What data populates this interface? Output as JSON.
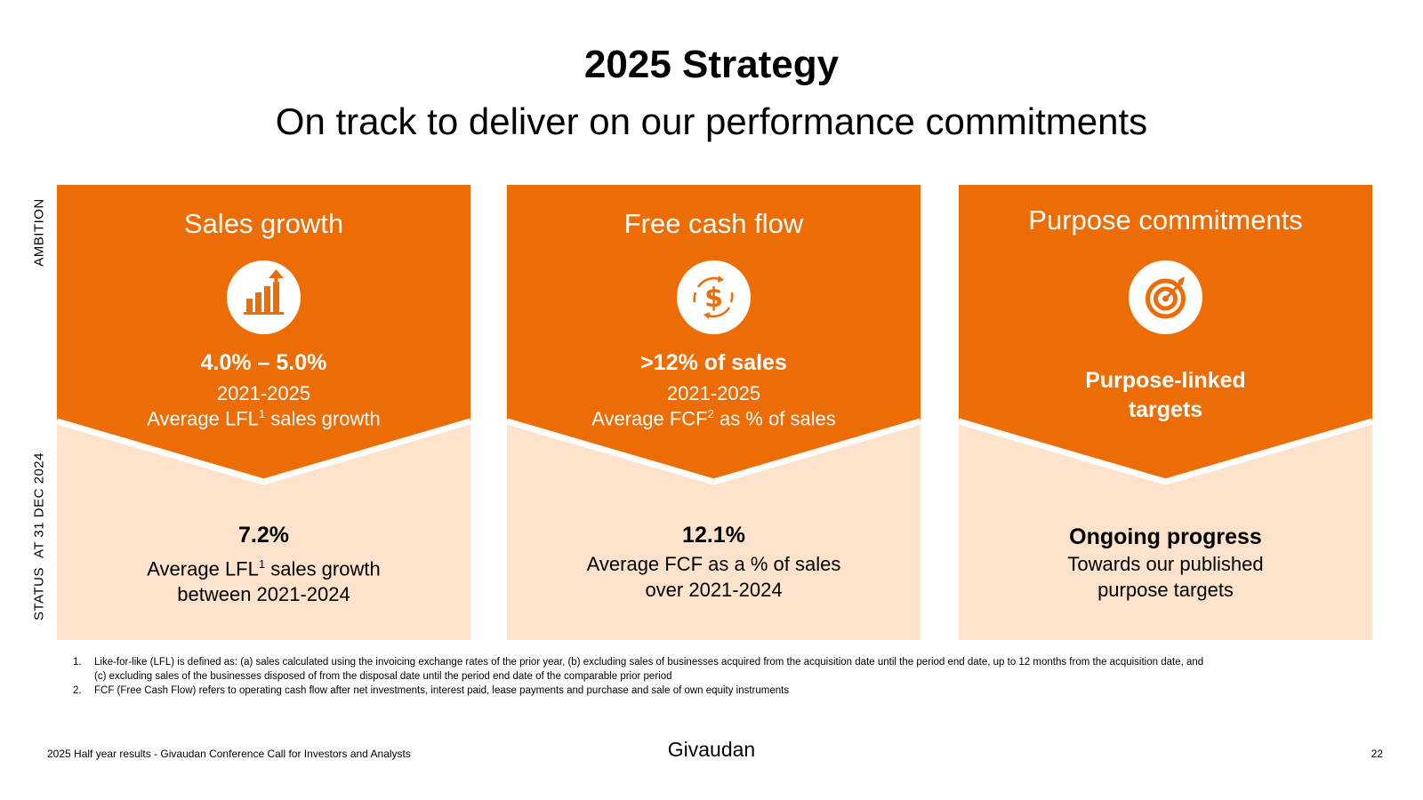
{
  "header": {
    "title": "2025 Strategy",
    "subtitle": "On track to deliver on our performance commitments"
  },
  "side_labels": {
    "ambition": "AMBITION",
    "status_a": "STATUS",
    "status_b": "AT 31 DEC 2024"
  },
  "colors": {
    "orange": "#EC6C06",
    "light_peach": "#FDE3CC"
  },
  "columns": [
    {
      "title": "Sales growth",
      "icon": "bar-chart-growth-icon",
      "ambition_value": "4.0% – 5.0%",
      "ambition_period": "2021-2025",
      "ambition_desc_pre": "Average LFL",
      "ambition_desc_sup": "1",
      "ambition_desc_post": " sales growth",
      "status_value": "7.2%",
      "status_line1_pre": "Average LFL",
      "status_line1_sup": "1",
      "status_line1_post": " sales growth",
      "status_line2": "between 2021-2024"
    },
    {
      "title": "Free cash flow",
      "icon": "dollar-cycle-icon",
      "ambition_value": ">12% of sales",
      "ambition_period": "2021-2025",
      "ambition_desc_pre": "Average FCF",
      "ambition_desc_sup": "2",
      "ambition_desc_post": " as % of sales",
      "status_value": "12.1%",
      "status_line1": "Average FCF as a % of sales",
      "status_line2": "over 2021-2024"
    },
    {
      "title": "Purpose commitments",
      "icon": "target-arrow-icon",
      "ambition_value_line1": "Purpose-linked",
      "ambition_value_line2": "targets",
      "status_value": "Ongoing progress",
      "status_line1": "Towards our published",
      "status_line2": "purpose targets"
    }
  ],
  "footnotes": [
    {
      "num": "1.",
      "line1": "Like-for-like (LFL) is defined as: (a) sales calculated using the invoicing exchange rates of the prior year, (b) excluding sales of businesses acquired from the acquisition date until the period end date, up to 12 months from the acquisition date, and",
      "line2": "(c) excluding sales of the businesses disposed of from the disposal date until the period end date of the comparable prior period"
    },
    {
      "num": "2.",
      "line1": "FCF (Free Cash Flow) refers to operating cash flow after net investments, interest paid, lease payments and purchase and sale of own equity instruments"
    }
  ],
  "footer": {
    "left": "2025 Half year results - Givaudan Conference Call for Investors and Analysts",
    "logo": "Givaudan",
    "page": "22"
  }
}
